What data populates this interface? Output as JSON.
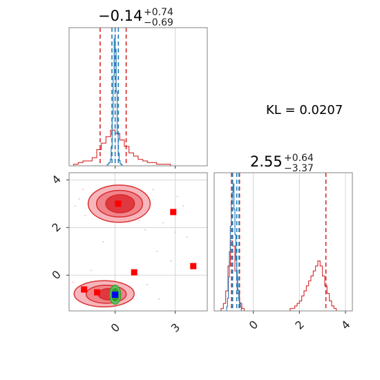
{
  "chart_data": {
    "type": "corner",
    "annotation": "KL = 0.0207",
    "colors": {
      "red": "#d62728",
      "blue": "#1f77b4",
      "green": "#2ca02c",
      "marker_red": "#ff0000",
      "marker_blue": "#0000ff"
    },
    "panels": [
      {
        "id": "hist-p1",
        "title_main": "−0.14",
        "title_sup": "+0.74",
        "title_sub": "−0.69",
        "xlim": [
          -2.3,
          4.6
        ],
        "x_ticks": [
          0,
          3
        ],
        "x_tick_labels": [],
        "quantile_lines": {
          "red": [
            -0.75,
            0.55
          ],
          "blue": [
            -0.16,
            0.0,
            0.16
          ]
        },
        "series": [
          {
            "name": "",
            "color": "red",
            "bin_start": -2.3,
            "bin_width": 0.23,
            "counts": [
              0,
              1,
              2,
              3,
              3,
              5,
              10,
              14,
              18,
              22,
              20,
              16,
              12,
              8,
              6,
              4,
              3,
              2,
              2,
              1,
              1,
              1,
              0,
              0,
              0,
              0,
              0,
              0,
              0,
              0
            ]
          },
          {
            "name": "",
            "color": "blue",
            "bin_start": -0.6,
            "bin_width": 0.05,
            "counts": [
              0,
              0,
              0,
              0,
              1,
              2,
              3,
              6,
              18,
              45,
              85,
              120,
              110,
              70,
              30,
              12,
              5,
              2,
              1,
              0,
              0,
              0,
              0,
              0
            ]
          }
        ]
      },
      {
        "id": "hist-p2",
        "title_main": "2.55",
        "title_sup": "+0.64",
        "title_sub": "−3.37",
        "xlim": [
          -1.7,
          4.3
        ],
        "x_ticks": [
          0,
          2,
          4
        ],
        "x_tick_labels": [
          "0",
          "2",
          "4"
        ],
        "quantile_lines": {
          "red": [
            -0.95,
            -0.6,
            3.15
          ],
          "blue": [
            -0.9,
            -0.72,
            -0.62
          ]
        },
        "series": [
          {
            "name": "",
            "color": "red",
            "bin_start": -1.7,
            "bin_width": 0.1,
            "counts": [
              0,
              0,
              0,
              1,
              3,
              8,
              18,
              28,
              26,
              16,
              7,
              3,
              1,
              0,
              0,
              0,
              0,
              0,
              0,
              0,
              0,
              0,
              0,
              0,
              0,
              0,
              0,
              0,
              0,
              0,
              0,
              0,
              0,
              1,
              1,
              2,
              3,
              4,
              6,
              8,
              10,
              12,
              14,
              16,
              18,
              20,
              18,
              14,
              10,
              7,
              4,
              2,
              1,
              0,
              0,
              0,
              0,
              0,
              0,
              0
            ]
          },
          {
            "name": "",
            "color": "blue",
            "bin_start": -1.2,
            "bin_width": 0.04,
            "counts": [
              0,
              1,
              3,
              8,
              14,
              20,
              26,
              28,
              30,
              24,
              18,
              12,
              8,
              5,
              3,
              2,
              1,
              0,
              0,
              0
            ]
          }
        ]
      },
      {
        "id": "scatter-2d",
        "xlim": [
          -2.3,
          4.6
        ],
        "ylim": [
          -1.5,
          4.3
        ],
        "x_ticks": [
          0,
          3
        ],
        "x_tick_labels": [
          "0",
          "3"
        ],
        "y_ticks": [
          0,
          2,
          4
        ],
        "y_tick_labels": [
          "0",
          "2",
          "4"
        ],
        "markers_red": [
          [
            -1.55,
            -0.6
          ],
          [
            -0.9,
            -0.72
          ],
          [
            0.15,
            3.0
          ],
          [
            0.95,
            0.12
          ],
          [
            2.9,
            2.65
          ],
          [
            3.9,
            0.38
          ]
        ],
        "markers_blue": [
          [
            0.0,
            -0.82
          ]
        ],
        "contours_red": [
          {
            "cx": 0.2,
            "cy": 3.0,
            "rx": 1.55,
            "ry": 0.78,
            "level": 1
          },
          {
            "cx": 0.22,
            "cy": 3.0,
            "rx": 1.15,
            "ry": 0.56,
            "level": 2
          },
          {
            "cx": 0.25,
            "cy": 3.0,
            "rx": 0.72,
            "ry": 0.38,
            "level": 3
          },
          {
            "cx": -0.55,
            "cy": -0.78,
            "rx": 1.5,
            "ry": 0.55,
            "level": 1
          },
          {
            "cx": -0.45,
            "cy": -0.8,
            "rx": 1.0,
            "ry": 0.38,
            "level": 2
          },
          {
            "cx": -0.3,
            "cy": -0.8,
            "rx": 0.55,
            "ry": 0.24,
            "level": 3
          }
        ],
        "contours_green": [
          {
            "cx": 0.0,
            "cy": -0.82,
            "rx": 0.28,
            "ry": 0.4,
            "level": 1
          },
          {
            "cx": 0.0,
            "cy": -0.82,
            "rx": 0.18,
            "ry": 0.26,
            "level": 2
          },
          {
            "cx": 0.0,
            "cy": -0.82,
            "rx": 0.09,
            "ry": 0.14,
            "level": 3
          }
        ],
        "scatter_points": [
          [
            -1.8,
            3.2
          ],
          [
            -1.5,
            2.5
          ],
          [
            1.9,
            3.6
          ],
          [
            2.4,
            2.2
          ],
          [
            3.1,
            3.3
          ],
          [
            -2.0,
            2.9
          ],
          [
            1.5,
            1.9
          ],
          [
            2.1,
            1.0
          ],
          [
            -1.2,
            0.2
          ],
          [
            3.6,
            1.6
          ],
          [
            2.8,
            0.6
          ],
          [
            -0.6,
            1.4
          ],
          [
            1.2,
            2.3
          ],
          [
            -1.6,
            3.6
          ],
          [
            0.9,
            3.7
          ],
          [
            3.4,
            2.9
          ],
          [
            -2.1,
            -0.3
          ],
          [
            1.6,
            -0.4
          ],
          [
            2.2,
            -1.0
          ],
          [
            3.0,
            1.8
          ]
        ]
      }
    ]
  }
}
